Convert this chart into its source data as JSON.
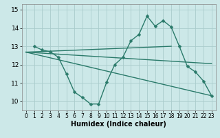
{
  "background_color": "#cce8e8",
  "grid_color": "#aacccc",
  "line_color": "#2a7a6a",
  "line_width": 1.0,
  "marker": "D",
  "marker_size": 2.5,
  "xlabel": "Humidex (Indice chaleur)",
  "xlabel_fontsize": 7,
  "xlim": [
    -0.5,
    23.5
  ],
  "ylim": [
    9.5,
    15.3
  ],
  "xticks": [
    0,
    1,
    2,
    3,
    4,
    5,
    6,
    7,
    8,
    9,
    10,
    11,
    12,
    13,
    14,
    15,
    16,
    17,
    18,
    19,
    20,
    21,
    22,
    23
  ],
  "yticks": [
    10,
    11,
    12,
    13,
    14,
    15
  ],
  "lines": [
    {
      "x": [
        1,
        2,
        3,
        4,
        5,
        6,
        7,
        8,
        9,
        10,
        11,
        12,
        13,
        14,
        15,
        16,
        17,
        18,
        19,
        20,
        21,
        22,
        23
      ],
      "y": [
        13.0,
        12.8,
        12.7,
        12.4,
        11.5,
        10.5,
        10.2,
        9.85,
        9.85,
        11.05,
        12.0,
        12.4,
        13.3,
        13.65,
        14.65,
        14.1,
        14.4,
        14.05,
        13.0,
        11.9,
        11.6,
        11.1,
        10.3
      ],
      "has_marker": true
    },
    {
      "x": [
        0,
        18
      ],
      "y": [
        12.68,
        13.0
      ],
      "has_marker": false
    },
    {
      "x": [
        0,
        23
      ],
      "y": [
        12.68,
        10.3
      ],
      "has_marker": false
    },
    {
      "x": [
        0,
        23
      ],
      "y": [
        12.68,
        12.05
      ],
      "has_marker": false
    }
  ]
}
